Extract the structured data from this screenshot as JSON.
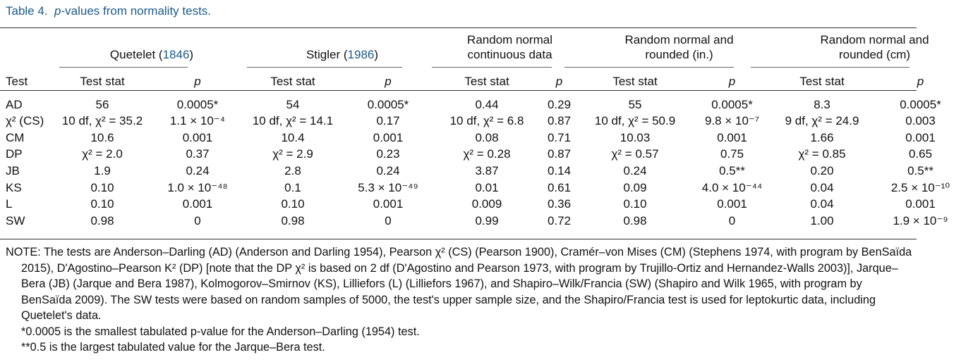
{
  "caption": {
    "label": "Table 4.",
    "p_letter": "p",
    "text": "-values from normality tests."
  },
  "groups": [
    {
      "line1": "",
      "line2_name": "Quetelet (",
      "line2_year": "1846",
      "line2_end": ")"
    },
    {
      "line1": "",
      "line2_name": "Stigler (",
      "line2_year": "1986",
      "line2_end": ")"
    },
    {
      "line1": "Random normal",
      "line2_name": "continuous data",
      "line2_year": "",
      "line2_end": ""
    },
    {
      "line1": "Random normal and",
      "line2_name": "rounded (in.)",
      "line2_year": "",
      "line2_end": ""
    },
    {
      "line1": "Random normal and",
      "line2_name": "rounded (cm)",
      "line2_year": "",
      "line2_end": ""
    }
  ],
  "subheaders": {
    "test": "Test",
    "stat": "Test stat",
    "p": "p"
  },
  "rows": [
    {
      "test": "AD",
      "cells": [
        "56",
        "0.0005*",
        "54",
        "0.0005*",
        "0.44",
        "0.29",
        "55",
        "0.0005*",
        "8.3",
        "0.0005*"
      ]
    },
    {
      "test": "χ² (CS)",
      "cells": [
        "10 df, χ² = 35.2",
        "1.1 × 10⁻⁴",
        "10 df, χ² = 14.1",
        "0.17",
        "10 df, χ² = 6.8",
        "0.87",
        "10 df, χ² = 50.9",
        "9.8 × 10⁻⁷",
        "9 df, χ² = 24.9",
        "0.003"
      ]
    },
    {
      "test": "CM",
      "cells": [
        "10.6",
        "0.001",
        "10.4",
        "0.001",
        "0.08",
        "0.71",
        "10.03",
        "0.001",
        "1.66",
        "0.001"
      ]
    },
    {
      "test": "DP",
      "cells": [
        "χ² = 2.0",
        "0.37",
        "χ² = 2.9",
        "0.23",
        "χ² = 0.28",
        "0.87",
        "χ² = 0.57",
        "0.75",
        "χ² = 0.85",
        "0.65"
      ]
    },
    {
      "test": "JB",
      "cells": [
        "1.9",
        "0.24",
        "2.8",
        "0.24",
        "3.87",
        "0.14",
        "0.24",
        "0.5**",
        "0.20",
        "0.5**"
      ]
    },
    {
      "test": "KS",
      "cells": [
        "0.10",
        "1.0 × 10⁻⁴⁸",
        "0.1",
        "5.3 × 10⁻⁴⁹",
        "0.01",
        "0.61",
        "0.09",
        "4.0 × 10⁻⁴⁴",
        "0.04",
        "2.5 × 10⁻¹⁰"
      ]
    },
    {
      "test": "L",
      "cells": [
        "0.10",
        "0.001",
        "0.10",
        "0.001",
        "0.009",
        "0.36",
        "0.10",
        "0.001",
        "0.04",
        "0.001"
      ]
    },
    {
      "test": "SW",
      "cells": [
        "0.98",
        "0",
        "0.98",
        "0",
        "0.99",
        "0.72",
        "0.98",
        "0",
        "1.00",
        "1.9 × 10⁻⁹"
      ]
    }
  ],
  "note": {
    "main": "NOTE: The tests are Anderson–Darling (AD) (Anderson and Darling 1954), Pearson χ² (CS) (Pearson 1900), Cramér–von Mises (CM) (Stephens 1974, with program by BenSaïda 2015), D'Agostino–Pearson K² (DP) [note that the DP χ² is based on 2 df (D'Agostino and Pearson 1973, with program by Trujillo-Ortiz and Hernandez-Walls 2003)], Jarque–Bera (JB) (Jarque and Bera 1987), Kolmogorov–Smirnov (KS), Lilliefors (L) (Lilliefors 1967), and Shapiro–Wilk/Francia (SW) (Shapiro and Wilk 1965, with program by BenSaïda 2009). The SW tests were based on random samples of 5000, the test's upper sample size, and the Shapiro/Francia test is used for leptokurtic data, including Quetelet's data.",
    "foot1": "*0.0005 is the smallest tabulated p-value for the Anderson–Darling (1954) test.",
    "foot2": "**0.5 is the largest tabulated value for the Jarque–Bera test."
  }
}
